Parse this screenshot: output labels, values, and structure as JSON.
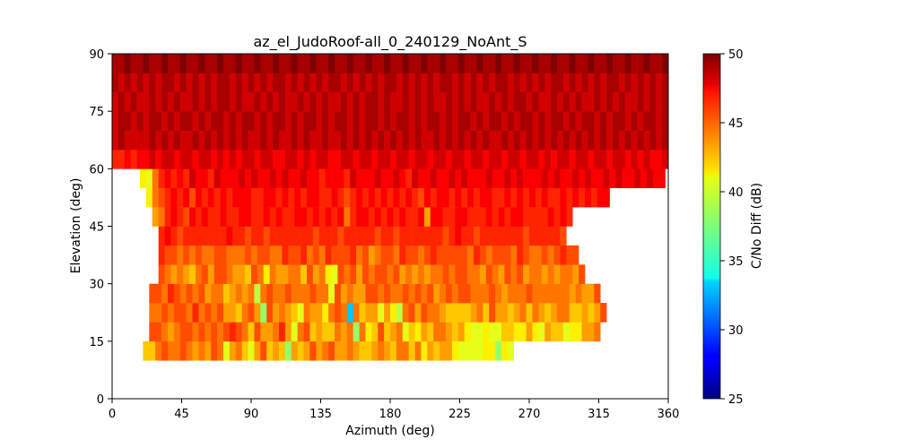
{
  "chart_data": {
    "type": "heatmap",
    "title": "az_el_JudoRoof-all_0_240129_NoAnt_S",
    "xlabel": "Azimuth (deg)",
    "ylabel": "Elevation (deg)",
    "xlim": [
      0,
      360
    ],
    "ylim": [
      0,
      90
    ],
    "xticks": [
      0,
      45,
      90,
      135,
      180,
      225,
      270,
      315,
      360
    ],
    "yticks": [
      0,
      15,
      30,
      45,
      60,
      75,
      90
    ],
    "cell_size_deg": {
      "azimuth": 4,
      "elevation": 5
    },
    "elevation_row_starts": [
      10,
      15,
      20,
      25,
      30,
      35,
      40,
      45,
      50,
      55,
      60,
      65,
      70,
      75,
      80,
      85
    ],
    "row_values": [
      {
        "el": 10,
        "az_start": 20,
        "values": [
          42,
          42,
          44,
          45,
          44,
          44,
          45,
          44,
          43,
          44,
          43,
          45,
          44,
          40,
          43,
          44,
          42,
          40,
          43,
          45,
          42,
          43,
          42,
          38,
          43,
          42,
          43,
          45,
          43,
          44,
          45,
          43,
          43,
          44,
          43,
          42,
          42,
          43,
          44,
          43,
          42,
          44,
          44,
          42,
          44,
          41,
          43,
          42,
          43,
          43,
          41,
          40,
          40,
          40,
          40,
          41,
          41,
          38,
          41,
          40
        ]
      },
      {
        "el": 15,
        "az_start": 24,
        "values": [
          45,
          45,
          44,
          43,
          44,
          45,
          45,
          44,
          45,
          44,
          45,
          44,
          45,
          46,
          45,
          44,
          42,
          45,
          43,
          43,
          44,
          46,
          43,
          40,
          44,
          45,
          42,
          43,
          42,
          42,
          44,
          43,
          44,
          38,
          44,
          41,
          42,
          45,
          42,
          43,
          44,
          40,
          42,
          41,
          43,
          42,
          44,
          44,
          43,
          42,
          43,
          41,
          40,
          40,
          41,
          40,
          40,
          42,
          42,
          41,
          41,
          43,
          41,
          40,
          43,
          42,
          42,
          40,
          41,
          41,
          43,
          43,
          44
        ]
      },
      {
        "el": 20,
        "az_start": 24,
        "values": [
          44,
          44,
          45,
          44,
          45,
          45,
          44,
          46,
          44,
          45,
          44,
          45,
          43,
          43,
          42,
          44,
          45,
          43,
          38,
          45,
          43,
          44,
          43,
          42,
          40,
          44,
          43,
          43,
          41,
          44,
          45,
          44,
          33,
          44,
          42,
          43,
          43,
          40,
          43,
          41,
          39,
          44,
          45,
          43,
          45,
          44,
          44,
          43,
          42,
          42,
          42,
          42,
          43,
          44,
          42,
          45,
          43,
          43,
          42,
          43,
          44,
          42,
          44,
          43,
          42,
          43,
          44,
          44,
          42,
          42,
          43,
          42,
          43,
          45
        ]
      },
      {
        "el": 25,
        "az_start": 24,
        "values": [
          45,
          45,
          44,
          46,
          45,
          44,
          45,
          44,
          45,
          43,
          44,
          44,
          42,
          43,
          44,
          43,
          44,
          39,
          44,
          45,
          44,
          44,
          45,
          44,
          44,
          44,
          45,
          44,
          44,
          40,
          45,
          43,
          44,
          43,
          43,
          45,
          45,
          44,
          45,
          44,
          44,
          45,
          44,
          45,
          44,
          45,
          43,
          44,
          45,
          44,
          45,
          45,
          44,
          44,
          44,
          45,
          44,
          43,
          44,
          44,
          44,
          45,
          44,
          44,
          44,
          44,
          44,
          44,
          43,
          44,
          43,
          43,
          45
        ]
      },
      {
        "el": 30,
        "az_start": 30,
        "values": [
          45,
          44,
          43,
          44,
          43,
          42,
          44,
          45,
          43,
          45,
          45,
          44,
          43,
          43,
          42,
          45,
          44,
          41,
          44,
          43,
          43,
          44,
          44,
          42,
          45,
          43,
          44,
          41,
          40,
          45,
          44,
          45,
          43,
          45,
          44,
          45,
          45,
          44,
          45,
          43,
          44,
          43,
          44,
          43,
          44,
          44,
          45,
          44,
          45,
          45,
          44,
          44,
          43,
          45,
          44,
          43,
          45,
          44,
          45,
          43,
          44,
          44,
          43,
          44,
          43,
          44,
          44,
          43,
          45
        ]
      },
      {
        "el": 35,
        "az_start": 30,
        "values": [
          46,
          45,
          45,
          44,
          45,
          44,
          45,
          44,
          44,
          45,
          45,
          44,
          44,
          44,
          45,
          44,
          45,
          45,
          44,
          44,
          46,
          45,
          45,
          46,
          44,
          45,
          44,
          46,
          45,
          45,
          45,
          46,
          44,
          45,
          43,
          44,
          45,
          45,
          44,
          46,
          45,
          45,
          44,
          45,
          46,
          45,
          45,
          45,
          45,
          45,
          44,
          46,
          45,
          44,
          45,
          45,
          45,
          44,
          46,
          45,
          44,
          44,
          45,
          44,
          45,
          46,
          45,
          45
        ]
      },
      {
        "el": 40,
        "az_start": 30,
        "values": [
          46,
          47,
          46,
          45,
          46,
          46,
          46,
          46,
          46,
          46,
          46,
          47,
          46,
          46,
          45,
          46,
          46,
          45,
          46,
          46,
          46,
          46,
          46,
          46,
          46,
          45,
          46,
          46,
          46,
          45,
          46,
          46,
          46,
          46,
          46,
          45,
          46,
          46,
          45,
          46,
          46,
          46,
          46,
          46,
          46,
          46,
          45,
          46,
          47,
          46,
          46,
          45,
          46,
          46,
          46,
          46,
          46,
          46,
          46,
          45,
          46,
          46,
          46,
          46,
          46,
          45
        ]
      },
      {
        "el": 45,
        "az_start": 26,
        "values": [
          43,
          44,
          46,
          47,
          46,
          45,
          47,
          46,
          47,
          46,
          46,
          47,
          46,
          46,
          47,
          47,
          46,
          46,
          47,
          46,
          47,
          46,
          46,
          47,
          47,
          46,
          47,
          46,
          47,
          46,
          47,
          44,
          46,
          47,
          47,
          46,
          47,
          46,
          47,
          46,
          47,
          46,
          46,
          47,
          43,
          47,
          47,
          46,
          46,
          47,
          47,
          46,
          46,
          46,
          47,
          46,
          47,
          46,
          47,
          47,
          46,
          46,
          46,
          46,
          47,
          46,
          47,
          46
        ]
      },
      {
        "el": 50,
        "az_start": 22,
        "values": [
          41,
          44,
          45,
          46,
          47,
          46,
          47,
          45,
          47,
          46,
          47,
          46,
          47,
          46,
          47,
          47,
          47,
          46,
          46,
          47,
          47,
          46,
          47,
          46,
          47,
          46,
          47,
          47,
          46,
          46,
          47,
          46,
          45,
          46,
          47,
          46,
          47,
          46,
          47,
          46,
          47,
          46,
          47,
          46,
          45,
          47,
          46,
          47,
          47,
          46,
          47,
          46,
          47,
          46,
          47,
          47,
          46,
          46,
          47,
          46,
          47,
          46,
          47,
          46,
          47,
          46,
          46,
          47,
          46,
          47,
          46,
          47,
          46,
          47,
          47
        ]
      },
      {
        "el": 55,
        "az_start": 18,
        "values": [
          41,
          40,
          44,
          46,
          47,
          46,
          47,
          46,
          48,
          47,
          47,
          46,
          48,
          47,
          47,
          47,
          48,
          47,
          48,
          47,
          47,
          48,
          47,
          48,
          47,
          47,
          48,
          47,
          47,
          46,
          47,
          47,
          47,
          46,
          48,
          47,
          47,
          47,
          48,
          47,
          47,
          48,
          47,
          46,
          48,
          47,
          47,
          48,
          47,
          47,
          48,
          47,
          48,
          47,
          47,
          47,
          48,
          47,
          47,
          48,
          47,
          48,
          47,
          47,
          47,
          48,
          47,
          48,
          47,
          47,
          48,
          47,
          48,
          47,
          47,
          48,
          47,
          48,
          47,
          47,
          48,
          47,
          48,
          47,
          47
        ]
      },
      {
        "el": 60,
        "az_start": 0,
        "values": [
          46,
          46,
          47,
          46,
          47,
          47,
          48,
          47,
          48,
          48,
          47,
          48,
          48,
          47,
          48,
          48,
          47,
          48,
          47,
          48,
          47,
          48,
          48,
          47,
          48,
          48,
          47,
          47,
          48,
          48,
          47,
          48,
          47,
          48,
          48,
          47,
          47,
          48,
          48,
          47,
          48,
          48,
          47,
          48,
          48,
          47,
          48,
          48,
          47,
          48,
          48,
          47,
          48,
          48,
          47,
          48,
          48,
          47,
          48,
          48,
          47,
          48,
          48,
          47,
          48,
          48,
          47,
          48,
          48,
          47,
          48,
          47,
          48,
          48,
          47,
          48,
          48,
          47,
          48,
          48,
          47,
          48,
          48,
          47,
          48,
          47,
          48,
          47,
          47,
          48
        ]
      },
      {
        "el": 65,
        "az_start": 0,
        "values": [
          48,
          49,
          48,
          48,
          48,
          48,
          49,
          48,
          49,
          48,
          49,
          48,
          48,
          49,
          48,
          49,
          48,
          49,
          48,
          49,
          48,
          49,
          48,
          48,
          49,
          48,
          49,
          48,
          48,
          49,
          48,
          49,
          48,
          48,
          49,
          48,
          48,
          49,
          48,
          49,
          48,
          49,
          48,
          49,
          48,
          49,
          48,
          49,
          48,
          49,
          48,
          48,
          49,
          48,
          49,
          48,
          49,
          48,
          49,
          48,
          49,
          48,
          48,
          49,
          48,
          49,
          48,
          49,
          48,
          49,
          48,
          49,
          48,
          49,
          48,
          49,
          48,
          49,
          48,
          49,
          48,
          49,
          48,
          49,
          48,
          49,
          48,
          49,
          48,
          49
        ]
      },
      {
        "el": 70,
        "az_start": 0,
        "values": [
          48,
          49,
          49,
          48,
          49,
          48,
          49,
          49,
          48,
          49,
          48,
          49,
          49,
          48,
          49,
          48,
          49,
          49,
          48,
          49,
          48,
          49,
          49,
          48,
          49,
          48,
          49,
          49,
          48,
          49,
          48,
          49,
          49,
          48,
          49,
          48,
          49,
          49,
          48,
          49,
          48,
          49,
          49,
          48,
          49,
          48,
          49,
          49,
          48,
          49,
          48,
          49,
          49,
          48,
          49,
          48,
          49,
          49,
          48,
          49,
          48,
          49,
          49,
          48,
          49,
          48,
          49,
          49,
          48,
          49,
          48,
          49,
          49,
          48,
          49,
          48,
          49,
          49,
          48,
          49,
          48,
          49,
          49,
          48,
          49,
          48,
          49,
          49,
          48,
          49
        ]
      },
      {
        "el": 75,
        "az_start": 0,
        "values": [
          48,
          49,
          48,
          49,
          48,
          48,
          49,
          48,
          49,
          48,
          49,
          48,
          48,
          49,
          48,
          49,
          48,
          49,
          49,
          48,
          49,
          48,
          48,
          49,
          48,
          49,
          48,
          49,
          48,
          48,
          49,
          48,
          49,
          48,
          49,
          48,
          48,
          49,
          48,
          49,
          48,
          49,
          49,
          48,
          49,
          48,
          48,
          49,
          48,
          49,
          48,
          49,
          48,
          48,
          49,
          48,
          49,
          48,
          49,
          48,
          48,
          49,
          48,
          49,
          48,
          49,
          49,
          48,
          49,
          48,
          48,
          49,
          48,
          49,
          48,
          49,
          48,
          48,
          49,
          48,
          49,
          48,
          49,
          48,
          48,
          49,
          48,
          49,
          48,
          49
        ]
      },
      {
        "el": 80,
        "az_start": 0,
        "values": [
          49,
          48,
          49,
          48,
          49,
          48,
          49,
          48,
          49,
          49,
          48,
          49,
          48,
          49,
          48,
          49,
          48,
          49,
          49,
          48,
          49,
          48,
          49,
          48,
          49,
          48,
          49,
          49,
          48,
          49,
          48,
          49,
          48,
          49,
          48,
          49,
          49,
          48,
          49,
          48,
          49,
          48,
          49,
          48,
          49,
          49,
          48,
          49,
          48,
          49,
          48,
          49,
          48,
          49,
          49,
          48,
          49,
          48,
          49,
          48,
          49,
          48,
          49,
          49,
          48,
          49,
          48,
          49,
          48,
          49,
          48,
          49,
          49,
          48,
          49,
          48,
          49,
          48,
          49,
          48,
          49,
          49,
          48,
          49,
          48,
          49,
          48,
          49,
          48,
          49
        ]
      },
      {
        "el": 85,
        "az_start": 0,
        "values": [
          49,
          49,
          50,
          49,
          49,
          50,
          49,
          49,
          50,
          49,
          49,
          50,
          49,
          49,
          50,
          49,
          49,
          50,
          49,
          49,
          50,
          49,
          49,
          50,
          49,
          49,
          50,
          49,
          49,
          50,
          49,
          49,
          50,
          49,
          49,
          50,
          49,
          49,
          50,
          49,
          49,
          50,
          49,
          49,
          50,
          49,
          49,
          50,
          49,
          49,
          50,
          49,
          49,
          50,
          49,
          49,
          50,
          49,
          49,
          50,
          49,
          49,
          50,
          49,
          49,
          50,
          49,
          49,
          50,
          49,
          49,
          50,
          49,
          49,
          50,
          49,
          49,
          50,
          49,
          49,
          50,
          49,
          49,
          50,
          49,
          49,
          50,
          49,
          49,
          50
        ]
      }
    ],
    "colorbar": {
      "label": "C/No Diff (dB)",
      "vmin": 25,
      "vmax": 50,
      "ticks": [
        25,
        30,
        35,
        40,
        45,
        50
      ],
      "colormap": "jet"
    },
    "grid": false
  }
}
